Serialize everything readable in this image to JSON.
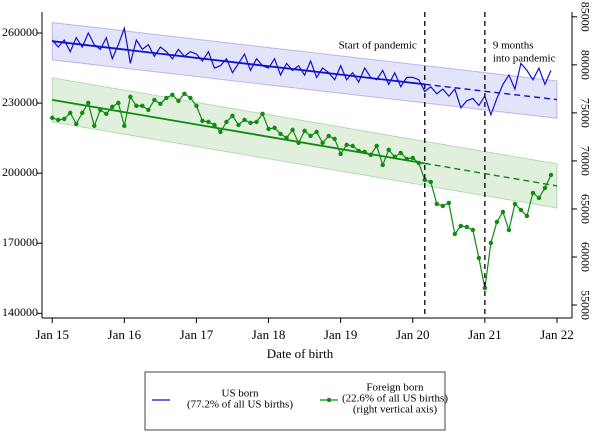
{
  "chart_data": {
    "type": "line",
    "x_label": "Date of birth",
    "x": [
      0,
      1,
      2,
      3,
      4,
      5,
      6,
      7,
      8,
      9,
      10,
      11,
      12,
      13,
      14,
      15,
      16,
      17,
      18,
      19,
      20,
      21,
      22,
      23,
      24,
      25,
      26,
      27,
      28,
      29,
      30,
      31,
      32,
      33,
      34,
      35,
      36,
      37,
      38,
      39,
      40,
      41,
      42,
      43,
      44,
      45,
      46,
      47,
      48,
      49,
      50,
      51,
      52,
      53,
      54,
      55,
      56,
      57,
      58,
      59,
      60,
      61,
      62,
      63,
      64,
      65,
      66,
      67,
      68,
      69,
      70,
      71,
      72,
      73,
      74,
      75,
      76,
      77,
      78,
      79,
      80,
      81,
      82,
      83
    ],
    "xlim": [
      -1.7,
      86.5
    ],
    "xticks": [
      {
        "value": 0,
        "label": "Jan 15"
      },
      {
        "value": 12,
        "label": "Jan 16"
      },
      {
        "value": 24,
        "label": "Jan 17"
      },
      {
        "value": 36,
        "label": "Jan 18"
      },
      {
        "value": 48,
        "label": "Jan 19"
      },
      {
        "value": 60,
        "label": "Jan 20"
      },
      {
        "value": 72,
        "label": "Jan 21"
      },
      {
        "value": 84,
        "label": "Jan 22"
      }
    ],
    "ylim": [
      138000,
      269000
    ],
    "yticks": [
      140000,
      170000,
      200000,
      230000,
      260000
    ],
    "y2lim": [
      53650,
      85500
    ],
    "y2ticks": [
      55000,
      60000,
      65000,
      70000,
      75000,
      80000,
      85000
    ],
    "series": [
      {
        "name": "US born",
        "legend_note": [
          "(77.2% of all US births)"
        ],
        "color": "#1010d0",
        "band_color": "#dcdcf8",
        "marker": false,
        "values": [
          257000,
          254000,
          257000,
          252000,
          258000,
          254000,
          260000,
          255000,
          253000,
          258000,
          249000,
          255000,
          262000,
          247000,
          257000,
          253000,
          255000,
          250000,
          254000,
          252000,
          249000,
          253000,
          250000,
          252000,
          251000,
          248000,
          252000,
          245000,
          246000,
          249000,
          243000,
          247000,
          251000,
          244000,
          249000,
          246000,
          245000,
          249000,
          242000,
          247000,
          244000,
          246000,
          242000,
          248000,
          241000,
          245000,
          243000,
          240000,
          246000,
          240000,
          243000,
          239000,
          245000,
          241000,
          240000,
          244000,
          238000,
          243000,
          237000,
          241000,
          241000,
          240000,
          235000,
          237000,
          234000,
          236000,
          233000,
          236000,
          228000,
          231000,
          232000,
          229000,
          233000,
          225000,
          232000,
          238000,
          242000,
          236000,
          247000,
          244000,
          240000,
          245000,
          238000,
          244000
        ],
        "trend": [
          256500,
          231500
        ],
        "band": 8000
      },
      {
        "name": "Foreign born",
        "legend_note": [
          "(22.6% of all US births)",
          "(right vertical axis)"
        ],
        "color": "#108a10",
        "band_color": "#d8ecd4",
        "marker": true,
        "axis": "y2",
        "values": [
          74480,
          74270,
          74370,
          75000,
          73850,
          75000,
          76040,
          73650,
          75310,
          74900,
          75630,
          76040,
          73650,
          76670,
          75730,
          75730,
          75310,
          76350,
          75940,
          76560,
          76880,
          76250,
          76980,
          76560,
          75730,
          74170,
          74060,
          73750,
          73020,
          74060,
          74690,
          73750,
          74270,
          73960,
          74060,
          74900,
          73330,
          73440,
          72810,
          72400,
          73230,
          71880,
          73130,
          72600,
          73020,
          71880,
          72600,
          72290,
          70730,
          71670,
          71560,
          71040,
          70940,
          70630,
          71560,
          69580,
          71150,
          70420,
          70830,
          70210,
          70310,
          69790,
          68020,
          67810,
          65520,
          65310,
          65630,
          62400,
          63230,
          63130,
          62810,
          59900,
          56770,
          61460,
          63650,
          64690,
          62810,
          65520,
          64900,
          64270,
          66670,
          66150,
          67190,
          68540
        ],
        "trend": [
          76350,
          67400
        ],
        "band": 2300
      }
    ],
    "events": [
      {
        "x": 62,
        "label": [
          "Start of pandemic"
        ]
      },
      {
        "x": 72,
        "label": [
          "9 months",
          "into pandemic"
        ]
      }
    ]
  }
}
